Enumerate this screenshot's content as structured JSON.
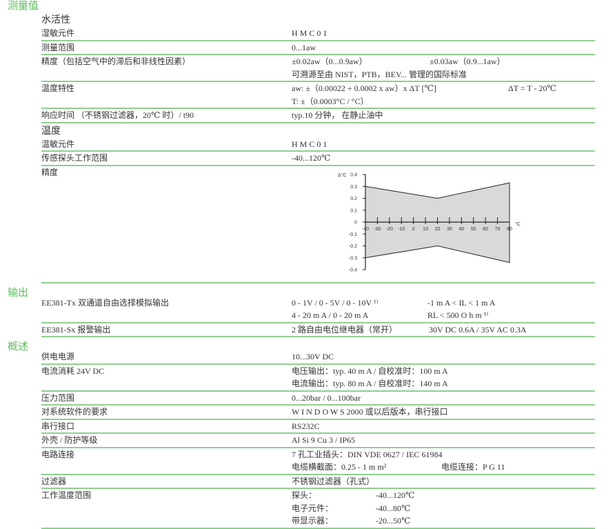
{
  "sections": [
    {
      "heading": "测量值",
      "groups": [
        {
          "subheading": "水活性",
          "rows": [
            {
              "label": "湿敏元件",
              "values": [
                [
                  "H M C 0 1"
                ]
              ]
            },
            {
              "label": "测量范围",
              "values": [
                [
                  "0...1aw"
                ]
              ]
            },
            {
              "label": "精度（包括空气中的滞后和非线性因素）",
              "values": [
                [
                  "±0.02aw（0...0.9aw）",
                  "±0.03aw（0.9...1aw）"
                ],
                [
                  "可溯源至由 NIST，PTB，BEV... 管理的国际标准"
                ]
              ]
            },
            {
              "label": "温度特性",
              "values": [
                [
                  "aw: ±（0.00022 + 0.0002 x aw）x ΔT [℃]",
                  "ΔT = T - 20℃"
                ],
                [
                  "T: ±（0.0003°C / °C）"
                ]
              ]
            },
            {
              "label": "响应时间 （不锈钢过滤器，20℃ 时）/ t90",
              "values": [
                [
                  "typ.10 分钟，  在静止油中"
                ]
              ]
            }
          ]
        },
        {
          "subheading": "温度",
          "rows": [
            {
              "label": "温敏元件",
              "values": [
                [
                  "H M C 0 1"
                ]
              ]
            },
            {
              "label": "传感探头工作范围",
              "values": [
                [
                  "-40...120℃"
                ]
              ]
            },
            {
              "label": "精度",
              "chart": true
            }
          ]
        }
      ]
    },
    {
      "heading": "输出",
      "groups": [
        {
          "rows": [
            {
              "label": "EE381-Tx 双通道自由选择模拟输出",
              "values": [
                [
                  "0 - 1V / 0 - 5V / 0 - 10V ¹⁾",
                  "-1 m A < IL < 1 m A"
                ],
                [
                  "4 - 20 m A / 0 - 20 m A",
                  "RL < 500 O h m ¹⁾"
                ]
              ]
            },
            {
              "label": "EE381-Sx 报警输出",
              "values": [
                [
                  "2 路自由电位继电器（常开）",
                  "30V DC 0.6A / 35V AC 0.3A"
                ]
              ]
            }
          ]
        }
      ]
    },
    {
      "heading": "概述",
      "groups": [
        {
          "rows": [
            {
              "label": "供电电源",
              "values": [
                [
                  "10...30V DC"
                ]
              ]
            },
            {
              "label": "电流消耗 24V DC",
              "values": [
                [
                  "电压输出：typ. 40 m A /  自校准时：100 m A"
                ],
                [
                  "电流输出：typ. 80 m A /  自校准时：140 m A"
                ]
              ]
            },
            {
              "label": "压力范围",
              "values": [
                [
                  "0...20bar / 0...100bar"
                ]
              ]
            },
            {
              "label": "对系统软件的要求",
              "values": [
                [
                  "W I N D O W S 2000  或以后版本，串行接口"
                ]
              ]
            },
            {
              "label": "串行接口",
              "values": [
                [
                  "RS232C"
                ]
              ]
            },
            {
              "label": "外壳 / 防护等级",
              "values": [
                [
                  "Al Si 9 Cu 3 / IP65"
                ]
              ]
            },
            {
              "label": "电路连接",
              "values": [
                [
                  "7 孔工业插头：DIN VDE 0627 / IEC 61984"
                ],
                [
                  "电缆横截面：0.25 - 1 m m²",
                  "电缆连接：P G 11"
                ]
              ]
            },
            {
              "label": "过滤器",
              "values": [
                [
                  "不锈钢过滤器（孔式）"
                ]
              ]
            },
            {
              "label": "工作温度范围",
              "values": [
                [
                  "探头：",
                  "-40...120℃"
                ],
                [
                  "电子元件：",
                  "-40...80℃"
                ],
                [
                  "带显示器：",
                  "-20...50℃"
                ]
              ]
            }
          ]
        }
      ]
    }
  ],
  "chart_data": {
    "type": "area",
    "ylabel": "Δ°C",
    "xlabel": "°C",
    "xlim": [
      -40,
      80
    ],
    "ylim": [
      -0.4,
      0.4
    ],
    "x_ticks": [
      -40,
      -30,
      -20,
      -10,
      0,
      10,
      20,
      30,
      40,
      50,
      60,
      70,
      80
    ],
    "y_ticks": [
      0.4,
      0.3,
      0.2,
      0.1,
      0,
      -0.1,
      -0.2,
      -0.3,
      -0.4
    ],
    "upper": {
      "x": [
        -40,
        20,
        80
      ],
      "y": [
        0.3,
        0.2,
        0.33
      ]
    },
    "lower": {
      "x": [
        -40,
        20,
        80
      ],
      "y": [
        -0.3,
        -0.2,
        -0.34
      ]
    },
    "fill_color": "#d9d9d9",
    "grid": false
  },
  "colors": {
    "heading": "#5cbf5c",
    "divider": "#8ecf8e"
  }
}
